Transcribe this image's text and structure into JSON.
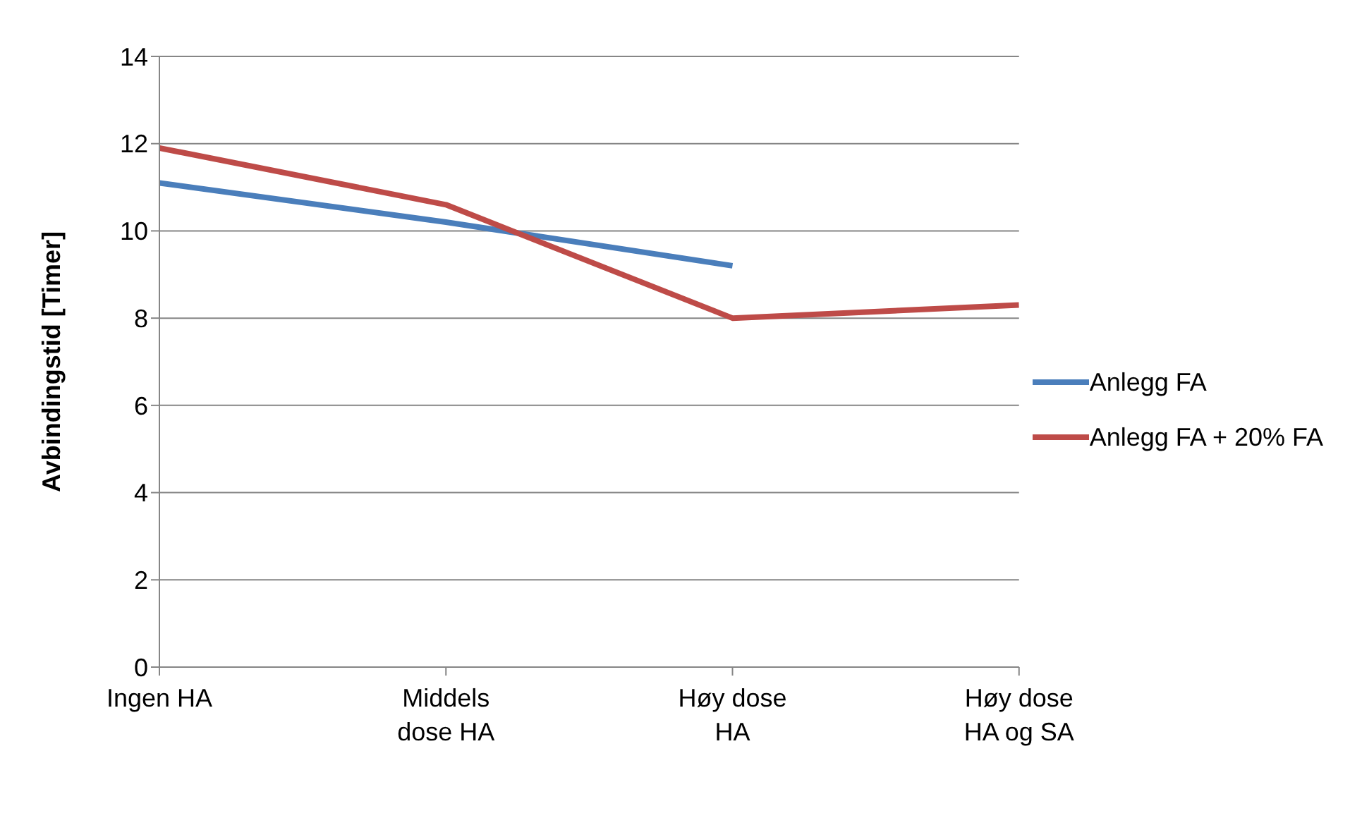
{
  "chart_data": {
    "type": "line",
    "ylabel": "Avbindingstid [Timer]",
    "categories": [
      "Ingen HA",
      "Middels dose HA",
      "Høy dose HA",
      "Høy dose HA og SA"
    ],
    "series": [
      {
        "name": "Anlegg FA",
        "color": "#4a7ebb",
        "values": [
          11.1,
          10.2,
          9.2,
          null
        ]
      },
      {
        "name": "Anlegg FA + 20% FA",
        "color": "#be4b48",
        "values": [
          11.9,
          10.6,
          8.0,
          8.3
        ]
      }
    ],
    "ylim": [
      0,
      14
    ],
    "yticks": [
      0,
      2,
      4,
      6,
      8,
      10,
      12,
      14
    ],
    "grid": "y",
    "legend": "right",
    "marker": "none",
    "line_style": "solid"
  }
}
